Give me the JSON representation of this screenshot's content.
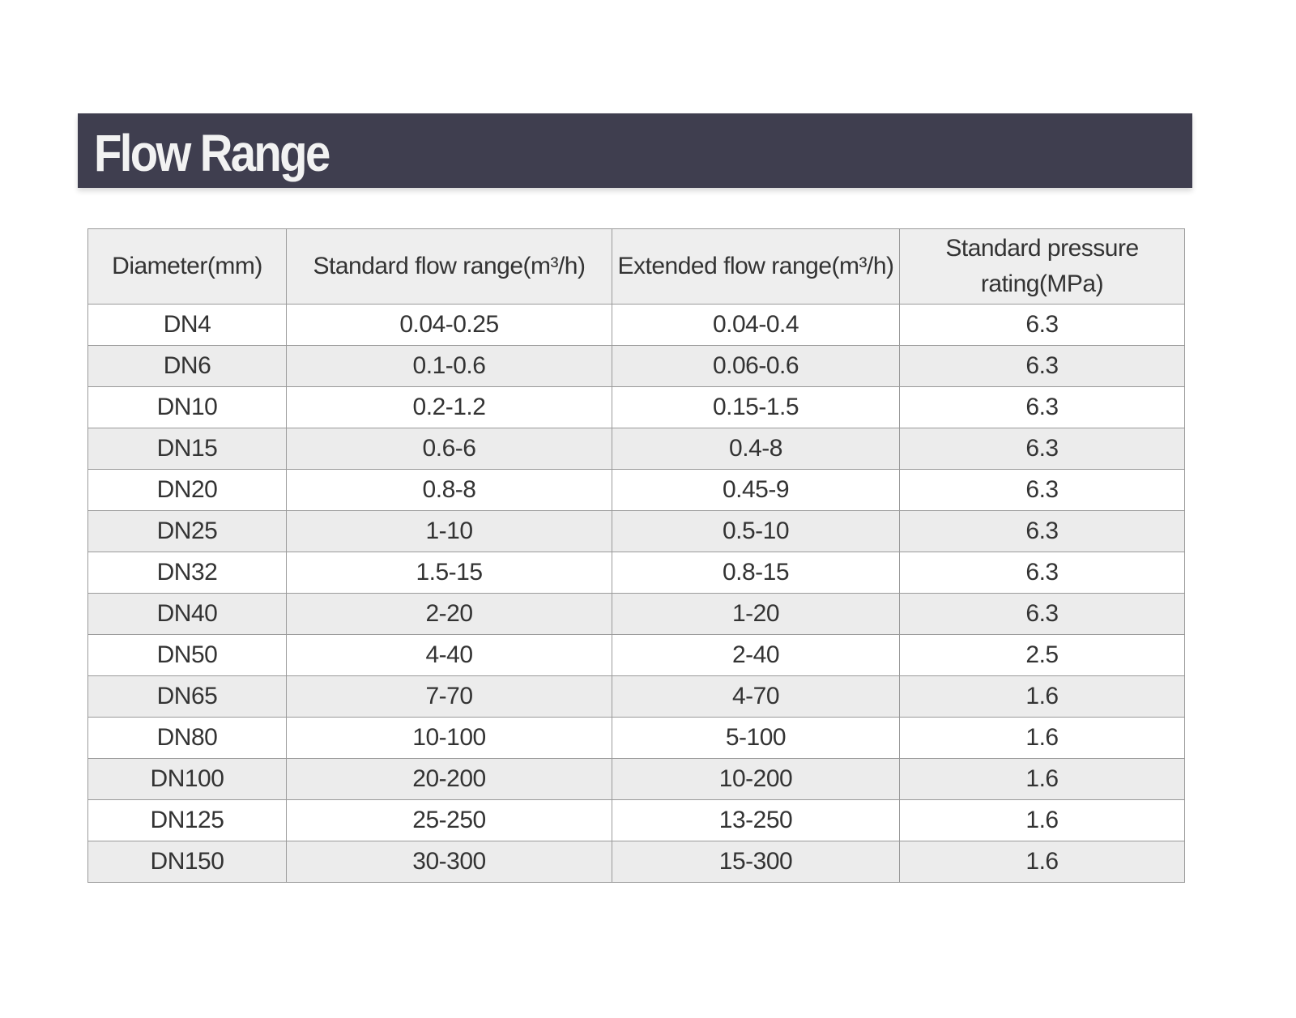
{
  "header": {
    "title": "Flow Range"
  },
  "table": {
    "columns": [
      "Diameter(mm)",
      "Standard flow range(m³/h)",
      "Extended flow range(m³/h)",
      "Standard pressure rating(MPa)"
    ],
    "rows": [
      [
        "DN4",
        "0.04-0.25",
        "0.04-0.4",
        "6.3"
      ],
      [
        "DN6",
        "0.1-0.6",
        "0.06-0.6",
        "6.3"
      ],
      [
        "DN10",
        "0.2-1.2",
        "0.15-1.5",
        "6.3"
      ],
      [
        "DN15",
        "0.6-6",
        "0.4-8",
        "6.3"
      ],
      [
        "DN20",
        "0.8-8",
        "0.45-9",
        "6.3"
      ],
      [
        "DN25",
        "1-10",
        "0.5-10",
        "6.3"
      ],
      [
        "DN32",
        "1.5-15",
        "0.8-15",
        "6.3"
      ],
      [
        "DN40",
        "2-20",
        "1-20",
        "6.3"
      ],
      [
        "DN50",
        "4-40",
        "2-40",
        "2.5"
      ],
      [
        "DN65",
        "7-70",
        "4-70",
        "1.6"
      ],
      [
        "DN80",
        "10-100",
        "5-100",
        "1.6"
      ],
      [
        "DN100",
        "20-200",
        "10-200",
        "1.6"
      ],
      [
        "DN125",
        "25-250",
        "13-250",
        "1.6"
      ],
      [
        "DN150",
        "30-300",
        "15-300",
        "1.6"
      ]
    ]
  }
}
